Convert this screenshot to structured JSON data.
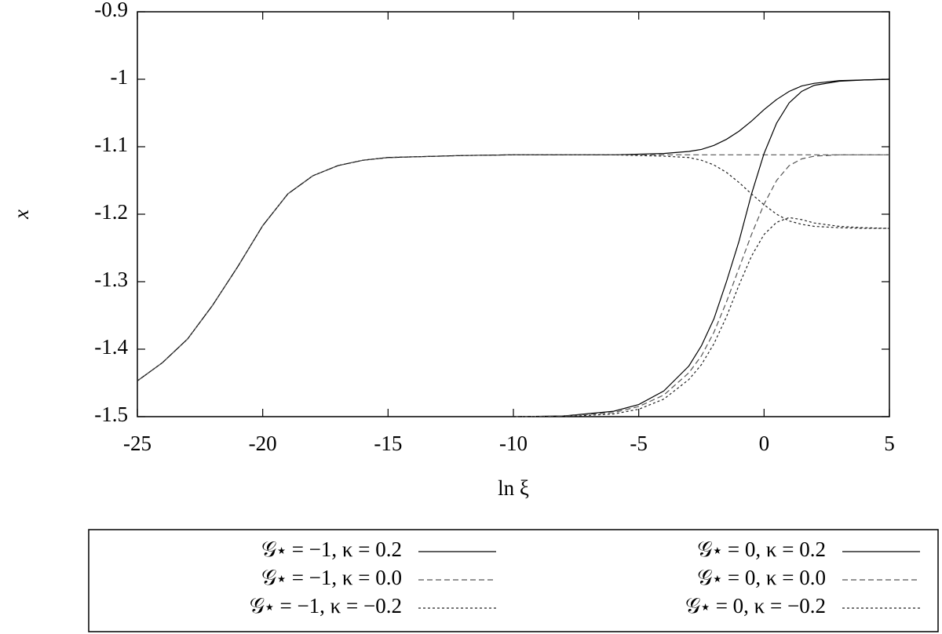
{
  "chart_data": {
    "type": "line",
    "xlabel": "ln ξ",
    "ylabel": "x",
    "x": [
      -25,
      -24,
      -23,
      -22,
      -21,
      -20,
      -19,
      -18,
      -17,
      -16,
      -15,
      -12,
      -10,
      -8,
      -6,
      -5,
      -4,
      -3,
      -2.5,
      -2,
      -1.5,
      -1,
      -0.5,
      0,
      0.5,
      1,
      1.5,
      2,
      3,
      4,
      5
    ],
    "xlim": [
      -25,
      5
    ],
    "xticks": [
      -25,
      -20,
      -15,
      -10,
      -5,
      0,
      5
    ],
    "ylim": [
      -1.5,
      -0.9
    ],
    "yticks": [
      -1.5,
      -1.4,
      -1.3,
      -1.2,
      -1.1,
      -1,
      -0.9
    ],
    "legend": "bottom",
    "series": [
      {
        "name": "𝒢⋆ = −1, κ = 0.2",
        "color": "#000000",
        "dash": "solid",
        "values": [
          -1.447,
          -1.42,
          -1.385,
          -1.335,
          -1.278,
          -1.217,
          -1.17,
          -1.143,
          -1.128,
          -1.12,
          -1.116,
          -1.113,
          -1.112,
          -1.112,
          -1.112,
          -1.111,
          -1.11,
          -1.107,
          -1.104,
          -1.098,
          -1.089,
          -1.077,
          -1.062,
          -1.045,
          -1.03,
          -1.018,
          -1.01,
          -1.006,
          -1.002,
          -1.001,
          -1.0
        ]
      },
      {
        "name": "𝒢⋆ = −1, κ = 0.0",
        "color": "#555555",
        "dash": "dashed",
        "values": [
          -1.447,
          -1.42,
          -1.385,
          -1.335,
          -1.278,
          -1.217,
          -1.17,
          -1.143,
          -1.128,
          -1.12,
          -1.116,
          -1.113,
          -1.112,
          -1.112,
          -1.112,
          -1.112,
          -1.112,
          -1.112,
          -1.112,
          -1.112,
          -1.112,
          -1.112,
          -1.112,
          -1.112,
          -1.112,
          -1.112,
          -1.112,
          -1.112,
          -1.112,
          -1.112,
          -1.112
        ]
      },
      {
        "name": "𝒢⋆ = −1, κ = −0.2",
        "color": "#222222",
        "dash": "dotted",
        "values": [
          -1.447,
          -1.42,
          -1.385,
          -1.335,
          -1.278,
          -1.217,
          -1.17,
          -1.143,
          -1.128,
          -1.12,
          -1.116,
          -1.113,
          -1.112,
          -1.112,
          -1.112,
          -1.113,
          -1.114,
          -1.116,
          -1.12,
          -1.127,
          -1.138,
          -1.153,
          -1.17,
          -1.186,
          -1.2,
          -1.21,
          -1.215,
          -1.218,
          -1.22,
          -1.221,
          -1.221
        ]
      },
      {
        "name": "𝒢⋆ = 0, κ = 0.2",
        "color": "#000000",
        "dash": "solid",
        "values": [
          null,
          null,
          null,
          null,
          null,
          null,
          null,
          null,
          null,
          null,
          null,
          null,
          -1.5,
          -1.499,
          -1.492,
          -1.482,
          -1.462,
          -1.425,
          -1.395,
          -1.355,
          -1.3,
          -1.24,
          -1.17,
          -1.11,
          -1.065,
          -1.035,
          -1.018,
          -1.009,
          -1.003,
          -1.001,
          -1.0
        ]
      },
      {
        "name": "𝒢⋆ = 0, κ = 0.0",
        "color": "#555555",
        "dash": "dashed",
        "values": [
          null,
          null,
          null,
          null,
          null,
          null,
          null,
          null,
          null,
          null,
          null,
          null,
          -1.5,
          -1.499,
          -1.494,
          -1.485,
          -1.468,
          -1.435,
          -1.41,
          -1.375,
          -1.33,
          -1.28,
          -1.23,
          -1.185,
          -1.15,
          -1.128,
          -1.118,
          -1.114,
          -1.112,
          -1.112,
          -1.112
        ]
      },
      {
        "name": "𝒢⋆ = 0, κ = −0.2",
        "color": "#222222",
        "dash": "dotted",
        "values": [
          null,
          null,
          null,
          null,
          null,
          null,
          null,
          null,
          null,
          null,
          null,
          null,
          -1.5,
          -1.5,
          -1.496,
          -1.489,
          -1.474,
          -1.445,
          -1.423,
          -1.392,
          -1.352,
          -1.305,
          -1.262,
          -1.23,
          -1.212,
          -1.205,
          -1.208,
          -1.213,
          -1.218,
          -1.22,
          -1.221
        ]
      }
    ]
  }
}
